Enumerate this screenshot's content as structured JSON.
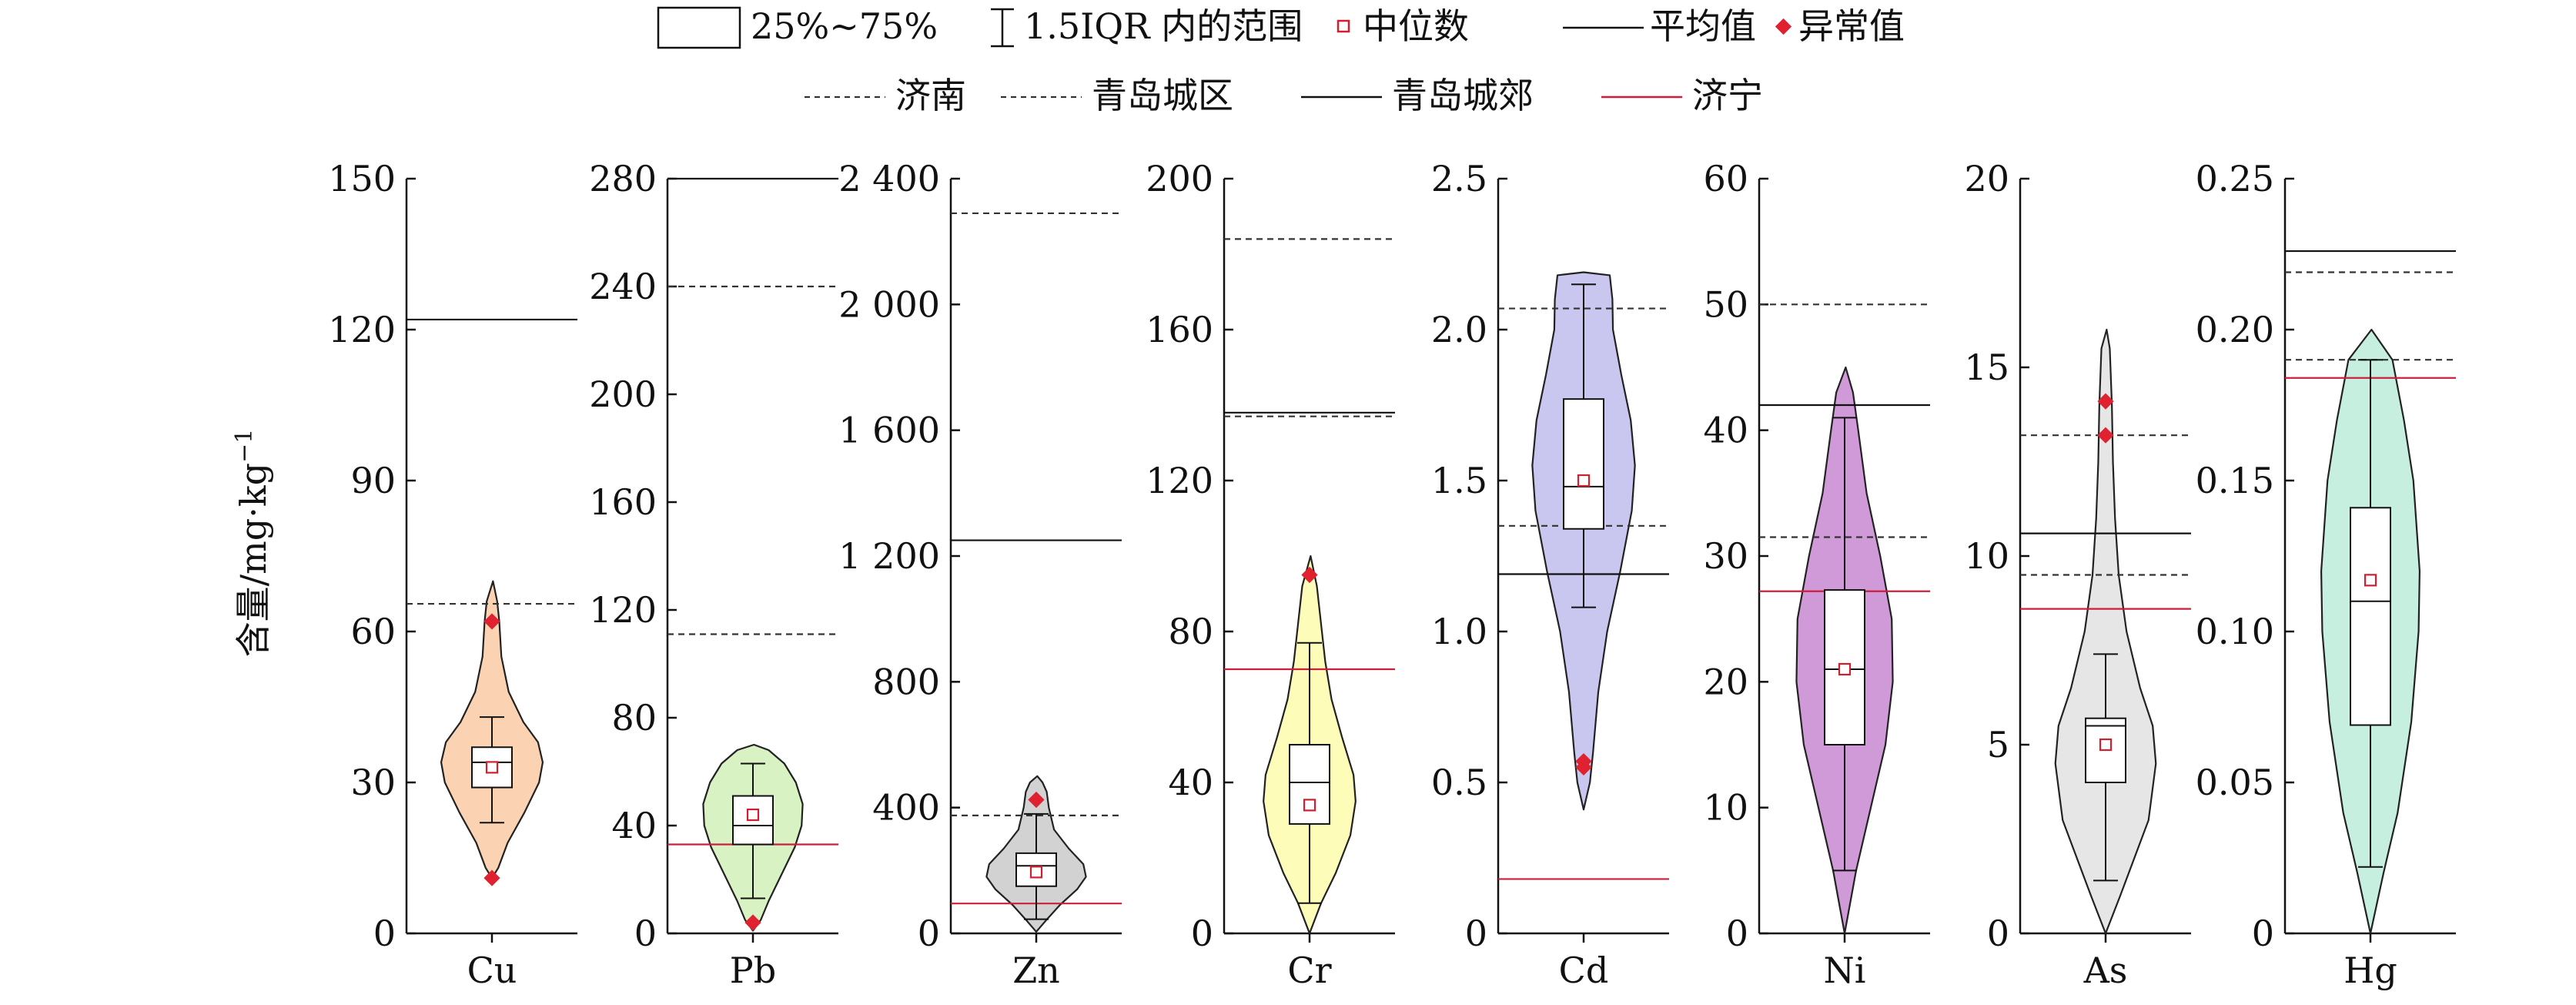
{
  "legend": {
    "row1": [
      {
        "kind": "box",
        "label": "25%~75%"
      },
      {
        "kind": "whisker",
        "label": "1.5IQR 内的范围"
      },
      {
        "kind": "median",
        "label": "中位数"
      },
      {
        "kind": "mean",
        "label": "平均值"
      },
      {
        "kind": "outlier",
        "label": "异常值"
      }
    ],
    "row2": [
      {
        "style": "dashed",
        "color": "#333333",
        "label": "济南"
      },
      {
        "style": "dashed",
        "color": "#333333",
        "label": "青岛城区"
      },
      {
        "style": "solid",
        "color": "#111111",
        "label": "青岛城郊"
      },
      {
        "style": "solid",
        "color": "#cc1f3c",
        "label": "济宁"
      }
    ]
  },
  "y_axis_title": "含量/mg·kg",
  "y_axis_title_sup": "−1",
  "colors": {
    "outlier": "#e0212f",
    "median_marker": "#d02030",
    "jinan": "#333333",
    "qingdao_urban": "#333333",
    "qingdao_suburb": "#111111",
    "jining": "#cc1f3c"
  },
  "chart_data": {
    "type": "violin",
    "panels": [
      {
        "element": "Cu",
        "ylim": [
          0,
          150
        ],
        "ticks": [
          0,
          30,
          60,
          90,
          120,
          150
        ],
        "tick_labels": [
          "0",
          "30",
          "60",
          "90",
          "120",
          "150"
        ],
        "fill": "#fbd3b3",
        "violin": [
          [
            11,
            0
          ],
          [
            13,
            0.12
          ],
          [
            18,
            0.3
          ],
          [
            24,
            0.62
          ],
          [
            30,
            0.9
          ],
          [
            34,
            0.97
          ],
          [
            38,
            0.88
          ],
          [
            42,
            0.6
          ],
          [
            48,
            0.32
          ],
          [
            55,
            0.18
          ],
          [
            62,
            0.14
          ],
          [
            66,
            0.1
          ],
          [
            70,
            0.02
          ]
        ],
        "q1": 29,
        "median": 34,
        "q3": 37,
        "whisker_low": 22,
        "whisker_high": 43,
        "mean": 33,
        "outliers": [
          11,
          62
        ],
        "refs": {
          "jinan": 65.5,
          "qingdao_urban": null,
          "qingdao_suburb": 122,
          "jining": null
        }
      },
      {
        "element": "Pb",
        "ylim": [
          0,
          280
        ],
        "ticks": [
          0,
          40,
          80,
          120,
          160,
          200,
          240,
          280
        ],
        "tick_labels": [
          "0",
          "40",
          "80",
          "120",
          "160",
          "200",
          "240",
          "280"
        ],
        "fill": "#d8f2c4",
        "violin": [
          [
            1,
            0
          ],
          [
            5,
            0.15
          ],
          [
            12,
            0.3
          ],
          [
            22,
            0.55
          ],
          [
            32,
            0.8
          ],
          [
            40,
            0.93
          ],
          [
            48,
            0.95
          ],
          [
            56,
            0.82
          ],
          [
            63,
            0.6
          ],
          [
            68,
            0.3
          ],
          [
            70,
            0.02
          ]
        ],
        "q1": 33,
        "median": 40,
        "q3": 51,
        "whisker_low": 13,
        "whisker_high": 63,
        "mean": 44,
        "outliers": [
          4
        ],
        "refs": {
          "jinan": 240,
          "qingdao_urban": 111,
          "qingdao_suburb": 280,
          "jining": 33
        }
      },
      {
        "element": "Zn",
        "ylim": [
          0,
          2400
        ],
        "ticks": [
          0,
          400,
          800,
          1200,
          1600,
          2000,
          2400
        ],
        "tick_labels": [
          "0",
          "400",
          "800",
          "1 200",
          "1 600",
          "2 000",
          "2 400"
        ],
        "fill": "#d2d2d2",
        "violin": [
          [
            5,
            0
          ],
          [
            40,
            0.18
          ],
          [
            90,
            0.45
          ],
          [
            140,
            0.78
          ],
          [
            180,
            0.95
          ],
          [
            220,
            0.9
          ],
          [
            270,
            0.62
          ],
          [
            330,
            0.34
          ],
          [
            400,
            0.24
          ],
          [
            450,
            0.2
          ],
          [
            480,
            0.12
          ],
          [
            500,
            0.02
          ]
        ],
        "q1": 150,
        "median": 215,
        "q3": 255,
        "whisker_low": 45,
        "whisker_high": 380,
        "mean": 195,
        "outliers": [
          425
        ],
        "refs": {
          "jinan": 2290,
          "qingdao_urban": 375,
          "qingdao_suburb": 1250,
          "jining": 95
        }
      },
      {
        "element": "Cr",
        "ylim": [
          0,
          200
        ],
        "ticks": [
          0,
          40,
          80,
          120,
          160,
          200
        ],
        "tick_labels": [
          "0",
          "40",
          "80",
          "120",
          "160",
          "200"
        ],
        "fill": "#fdfcb8",
        "violin": [
          [
            0,
            0
          ],
          [
            8,
            0.22
          ],
          [
            16,
            0.5
          ],
          [
            26,
            0.78
          ],
          [
            35,
            0.88
          ],
          [
            42,
            0.84
          ],
          [
            52,
            0.62
          ],
          [
            62,
            0.42
          ],
          [
            72,
            0.3
          ],
          [
            82,
            0.22
          ],
          [
            92,
            0.14
          ],
          [
            100,
            0.02
          ]
        ],
        "q1": 29,
        "median": 40,
        "q3": 50,
        "whisker_low": 8,
        "whisker_high": 77,
        "mean": 34,
        "outliers": [
          95
        ],
        "refs": {
          "jinan": 184,
          "qingdao_urban": 137,
          "qingdao_suburb": 138,
          "jining": 70
        }
      },
      {
        "element": "Cd",
        "ylim": [
          0,
          2.5
        ],
        "ticks": [
          0,
          0.5,
          1.0,
          1.5,
          2.0,
          2.5
        ],
        "tick_labels": [
          "0",
          "0.5",
          "1.0",
          "1.5",
          "2.0",
          "2.5"
        ],
        "fill": "#c9c6ef",
        "violin": [
          [
            0.41,
            0
          ],
          [
            0.5,
            0.12
          ],
          [
            0.6,
            0.18
          ],
          [
            0.8,
            0.28
          ],
          [
            1.0,
            0.45
          ],
          [
            1.2,
            0.7
          ],
          [
            1.4,
            0.92
          ],
          [
            1.55,
            0.98
          ],
          [
            1.7,
            0.9
          ],
          [
            1.85,
            0.72
          ],
          [
            2.0,
            0.56
          ],
          [
            2.1,
            0.55
          ],
          [
            2.18,
            0.5
          ],
          [
            2.19,
            0
          ]
        ],
        "q1": 1.34,
        "median": 1.48,
        "q3": 1.77,
        "whisker_low": 1.08,
        "whisker_high": 2.15,
        "mean": 1.5,
        "outliers": [
          0.55,
          0.57
        ],
        "refs": {
          "jinan": 1.35,
          "qingdao_urban": 2.07,
          "qingdao_suburb": 1.19,
          "jining": 0.18
        }
      },
      {
        "element": "Ni",
        "ylim": [
          0,
          60
        ],
        "ticks": [
          0,
          10,
          20,
          30,
          40,
          50,
          60
        ],
        "tick_labels": [
          "0",
          "10",
          "20",
          "30",
          "40",
          "50",
          "60"
        ],
        "fill": "#d09ad8",
        "violin": [
          [
            0,
            0
          ],
          [
            5,
            0.22
          ],
          [
            10,
            0.5
          ],
          [
            15,
            0.78
          ],
          [
            20,
            0.92
          ],
          [
            25,
            0.9
          ],
          [
            30,
            0.68
          ],
          [
            35,
            0.42
          ],
          [
            40,
            0.26
          ],
          [
            43,
            0.16
          ],
          [
            45,
            0.02
          ]
        ],
        "q1": 15,
        "median": 21,
        "q3": 27.3,
        "whisker_low": 5,
        "whisker_high": 41,
        "mean": 21,
        "outliers": [],
        "refs": {
          "jinan": 50,
          "qingdao_urban": 31.5,
          "qingdao_suburb": 42,
          "jining": 27.2
        }
      },
      {
        "element": "As",
        "ylim": [
          0,
          20
        ],
        "ticks": [
          0,
          5,
          10,
          15,
          20
        ],
        "tick_labels": [
          "0",
          "5",
          "10",
          "15",
          "20"
        ],
        "fill": "#e6e6e6",
        "violin": [
          [
            0,
            0
          ],
          [
            1,
            0.28
          ],
          [
            2,
            0.55
          ],
          [
            3,
            0.82
          ],
          [
            4.5,
            0.96
          ],
          [
            5.5,
            0.9
          ],
          [
            6.5,
            0.66
          ],
          [
            8,
            0.4
          ],
          [
            9.5,
            0.25
          ],
          [
            11,
            0.18
          ],
          [
            12.5,
            0.14
          ],
          [
            14,
            0.12
          ],
          [
            15.5,
            0.08
          ],
          [
            16,
            0.02
          ]
        ],
        "q1": 4,
        "median": 5.5,
        "q3": 5.7,
        "whisker_low": 1.4,
        "whisker_high": 7.4,
        "mean": 5,
        "outliers": [
          13.2,
          14.1
        ],
        "refs": {
          "jinan": 13.2,
          "qingdao_urban": 9.5,
          "qingdao_suburb": 10.6,
          "jining": 8.6
        }
      },
      {
        "element": "Hg",
        "ylim": [
          0,
          0.25
        ],
        "ticks": [
          0,
          0.05,
          0.1,
          0.15,
          0.2,
          0.25
        ],
        "tick_labels": [
          "0",
          "0.05",
          "0.10",
          "0.15",
          "0.20",
          "0.25"
        ],
        "fill": "#c6efe0",
        "violin": [
          [
            0,
            0
          ],
          [
            0.02,
            0.25
          ],
          [
            0.04,
            0.52
          ],
          [
            0.07,
            0.78
          ],
          [
            0.1,
            0.92
          ],
          [
            0.12,
            0.94
          ],
          [
            0.15,
            0.82
          ],
          [
            0.17,
            0.64
          ],
          [
            0.19,
            0.42
          ],
          [
            0.2,
            0.02
          ]
        ],
        "q1": 0.069,
        "median": 0.11,
        "q3": 0.141,
        "whisker_low": 0.022,
        "whisker_high": 0.19,
        "mean": 0.117,
        "outliers": [],
        "refs": {
          "jinan": 0.219,
          "qingdao_urban": 0.19,
          "qingdao_suburb": 0.226,
          "jining": 0.184
        }
      }
    ]
  }
}
